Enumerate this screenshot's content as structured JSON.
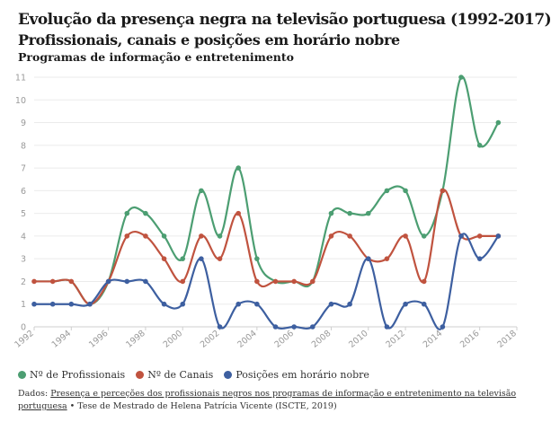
{
  "header": {
    "title": "Evolução da presença negra na televisão portuguesa (1992-2017)",
    "subtitle": "Profissionais, canais e posições em horário nobre",
    "subheading": "Programas de informação e entretenimento"
  },
  "footer": {
    "prefix": "Dados: ",
    "source_link": "Presença e perceções dos profissionais negros nos programas de informação e entretenimento na televisão portuguesa",
    "suffix": " • Tese de Mestrado de Helena Patrícia Vicente (ISCTE, 2019)"
  },
  "chart_data": {
    "type": "line",
    "title": "Evolução da presença negra na televisão portuguesa (1992-2017)",
    "subtitle": "Profissionais, canais e posições em horário nobre",
    "xlabel": "",
    "ylabel": "",
    "xlim": [
      1992,
      2018
    ],
    "ylim": [
      0,
      11
    ],
    "x_ticks": [
      1992,
      1994,
      1996,
      1998,
      2000,
      2002,
      2004,
      2006,
      2008,
      2010,
      2012,
      2014,
      2016,
      2018
    ],
    "y_ticks": [
      0,
      1,
      2,
      3,
      4,
      5,
      6,
      7,
      8,
      9,
      10,
      11
    ],
    "grid": true,
    "legend_position": "bottom-left",
    "x": [
      1992,
      1993,
      1994,
      1995,
      1996,
      1997,
      1998,
      1999,
      2000,
      2001,
      2002,
      2003,
      2004,
      2005,
      2006,
      2007,
      2008,
      2009,
      2010,
      2011,
      2012,
      2013,
      2014,
      2015,
      2016,
      2017
    ],
    "series": [
      {
        "name": "Nº de Profissionais",
        "color": "#4c9e72",
        "values": [
          null,
          null,
          null,
          null,
          null,
          5,
          5,
          4,
          3,
          6,
          4,
          7,
          3,
          null,
          null,
          null,
          5,
          5,
          5,
          6,
          6,
          4,
          6,
          11,
          8,
          9
        ]
      },
      {
        "name": "Nº de Canais",
        "color": "#c0533f",
        "values": [
          2,
          2,
          2,
          1,
          2,
          4,
          4,
          3,
          2,
          4,
          3,
          5,
          2,
          2,
          2,
          2,
          4,
          4,
          3,
          3,
          4,
          2,
          6,
          4,
          4,
          4
        ]
      },
      {
        "name": "Posições em horário nobre",
        "color": "#3d5fa0",
        "values": [
          1,
          1,
          1,
          1,
          2,
          2,
          2,
          1,
          1,
          3,
          0,
          1,
          1,
          0,
          0,
          0,
          1,
          1,
          3,
          0,
          1,
          1,
          0,
          4,
          3,
          4
        ]
      }
    ]
  }
}
